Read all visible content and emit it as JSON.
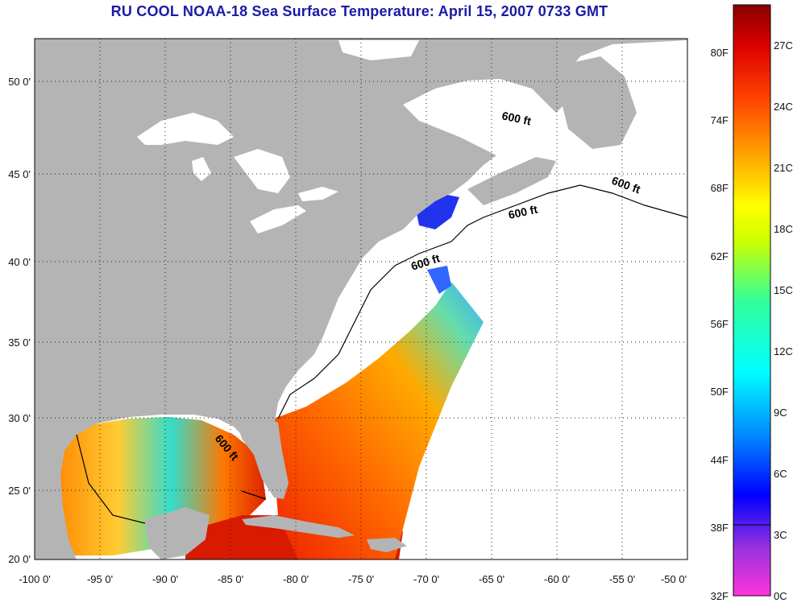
{
  "title": "RU COOL  NOAA-18  Sea Surface Temperature:  April 15, 2007 0733 GMT",
  "map": {
    "lon_ticks": [
      "-100 0'",
      "-95 0'",
      "-90 0'",
      "-85 0'",
      "-80 0'",
      "-75 0'",
      "-70 0'",
      "-65 0'",
      "-60 0'",
      "-55 0'",
      "-50 0'"
    ],
    "lat_ticks": [
      "50 0'",
      "45 0'",
      "40 0'",
      "35 0'",
      "30 0'",
      "25 0'",
      "20 0'"
    ],
    "contour_label": "600 ft",
    "colors": {
      "land": "#b4b4b4",
      "cloud": "#ffffff",
      "frame": "#000000"
    }
  },
  "colorbar": {
    "fahrenheit_labels": [
      "80F",
      "74F",
      "68F",
      "62F",
      "56F",
      "50F",
      "44F",
      "38F",
      "32F"
    ],
    "celsius_labels": [
      "27C",
      "24C",
      "21C",
      "18C",
      "15C",
      "12C",
      "9C",
      "6C",
      "3C",
      "0C"
    ],
    "gradient_stops": [
      "#ff33dd",
      "#9933dd",
      "#0000ff",
      "#0088ff",
      "#00ffff",
      "#33ff99",
      "#ccff00",
      "#ffff00",
      "#ffaa00",
      "#ff4400",
      "#dd0000",
      "#880000"
    ]
  }
}
